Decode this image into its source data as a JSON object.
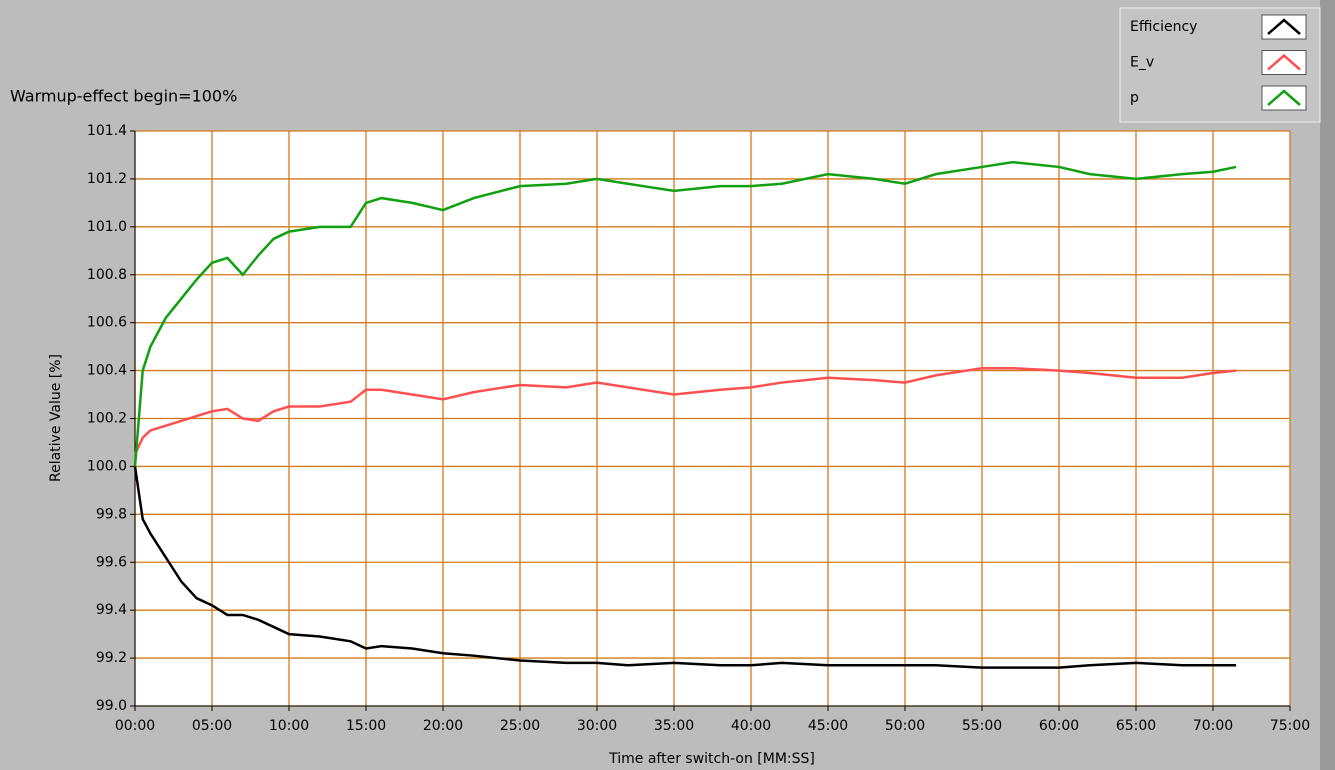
{
  "chart_data": {
    "type": "line",
    "annotation": "Warmup-effect begin=100%",
    "xlabel": "Time after switch-on [MM:SS]",
    "ylabel": "Relative Value [%]",
    "grid": true,
    "legend": "top-right",
    "x": [
      0,
      0.5,
      1,
      2,
      3,
      4,
      5,
      6,
      7,
      8,
      9,
      10,
      12,
      14,
      15,
      16,
      18,
      20,
      22,
      25,
      28,
      30,
      32,
      35,
      38,
      40,
      42,
      45,
      48,
      50,
      52,
      55,
      57,
      60,
      62,
      65,
      68,
      70,
      71.5
    ],
    "series": [
      {
        "name": "Efficiency",
        "color": "#000000",
        "values": [
          100.0,
          99.78,
          99.72,
          99.62,
          99.52,
          99.45,
          99.42,
          99.38,
          99.38,
          99.36,
          99.33,
          99.3,
          99.29,
          99.27,
          99.24,
          99.25,
          99.24,
          99.22,
          99.21,
          99.19,
          99.18,
          99.18,
          99.17,
          99.18,
          99.17,
          99.17,
          99.18,
          99.17,
          99.17,
          99.17,
          99.17,
          99.16,
          99.16,
          99.16,
          99.17,
          99.18,
          99.17,
          99.17,
          99.17
        ]
      },
      {
        "name": "E_v",
        "color": "#ff5050",
        "values": [
          100.05,
          100.12,
          100.15,
          100.17,
          100.19,
          100.21,
          100.23,
          100.24,
          100.2,
          100.19,
          100.23,
          100.25,
          100.25,
          100.27,
          100.32,
          100.32,
          100.3,
          100.28,
          100.31,
          100.34,
          100.33,
          100.35,
          100.33,
          100.3,
          100.32,
          100.33,
          100.35,
          100.37,
          100.36,
          100.35,
          100.38,
          100.41,
          100.41,
          100.4,
          100.39,
          100.37,
          100.37,
          100.39,
          100.4
        ]
      },
      {
        "name": "p",
        "color": "#10a010",
        "values": [
          100.0,
          100.4,
          100.5,
          100.62,
          100.7,
          100.78,
          100.85,
          100.87,
          100.8,
          100.88,
          100.95,
          100.98,
          101.0,
          101.0,
          101.1,
          101.12,
          101.1,
          101.07,
          101.12,
          101.17,
          101.18,
          101.2,
          101.18,
          101.15,
          101.17,
          101.17,
          101.18,
          101.22,
          101.2,
          101.18,
          101.22,
          101.25,
          101.27,
          101.25,
          101.22,
          101.2,
          101.22,
          101.23,
          101.25
        ]
      }
    ],
    "xlim": [
      0,
      75
    ],
    "xticks": [
      {
        "value": 0,
        "label": "00:00"
      },
      {
        "value": 5,
        "label": "05:00"
      },
      {
        "value": 10,
        "label": "10:00"
      },
      {
        "value": 15,
        "label": "15:00"
      },
      {
        "value": 20,
        "label": "20:00"
      },
      {
        "value": 25,
        "label": "25:00"
      },
      {
        "value": 30,
        "label": "30:00"
      },
      {
        "value": 35,
        "label": "35:00"
      },
      {
        "value": 40,
        "label": "40:00"
      },
      {
        "value": 45,
        "label": "45:00"
      },
      {
        "value": 50,
        "label": "50:00"
      },
      {
        "value": 55,
        "label": "55:00"
      },
      {
        "value": 60,
        "label": "60:00"
      },
      {
        "value": 65,
        "label": "65:00"
      },
      {
        "value": 70,
        "label": "70:00"
      },
      {
        "value": 75,
        "label": "75:00"
      }
    ],
    "ylim": [
      99.0,
      101.4
    ],
    "yticks": [
      {
        "value": 99.0,
        "label": "99.0"
      },
      99.2,
      99.4,
      99.6,
      99.8,
      {
        "value": 100.0,
        "label": "100.0"
      },
      100.2,
      100.4,
      100.6,
      100.8,
      {
        "value": 101.0,
        "label": "101.0"
      },
      101.2,
      101.4
    ]
  }
}
